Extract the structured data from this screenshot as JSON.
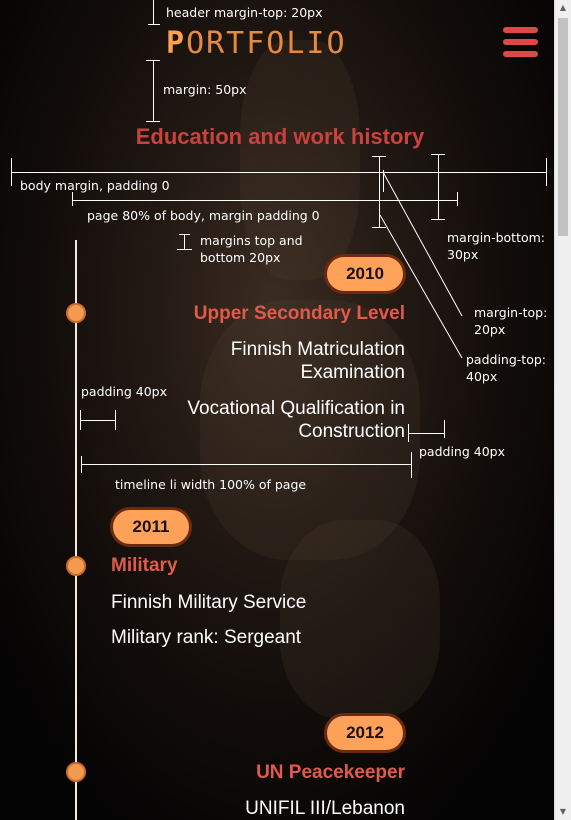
{
  "header": {
    "logo_first": "P",
    "logo_rest": "ORTFOLIO",
    "menu_icon": "hamburger-icon"
  },
  "section_title": "Education and work history",
  "annotations": {
    "header_margin_top": "header margin-top: 20px",
    "margin_50": "margin: 50px",
    "body_margin": "body margin, padding 0",
    "page_80": "page 80% of body, margin padding 0",
    "margins_top_bottom": "margins top and bottom 20px",
    "margin_bottom": "margin-bottom: 30px",
    "margin_top": "margin-top: 20px",
    "padding_top": "padding-top: 40px",
    "padding_left": "padding 40px",
    "padding_right": "padding 40px",
    "timeline_li": "timeline li width 100% of page"
  },
  "timeline": [
    {
      "year": "2010",
      "title": "Upper Secondary Level",
      "lines": [
        "Finnish Matriculation Examination",
        "Vocational Qualification in Construction"
      ]
    },
    {
      "year": "2011",
      "title": "Military",
      "lines": [
        "Finnish Military Service",
        "Military rank: Sergeant"
      ]
    },
    {
      "year": "2012",
      "title": "UN Peacekeeper",
      "lines": [
        "UNIFIL III/Lebanon"
      ]
    }
  ],
  "colors": {
    "accent_orange": "#ffa259",
    "title_red": "#c9423e",
    "menu_red": "#e04848"
  }
}
